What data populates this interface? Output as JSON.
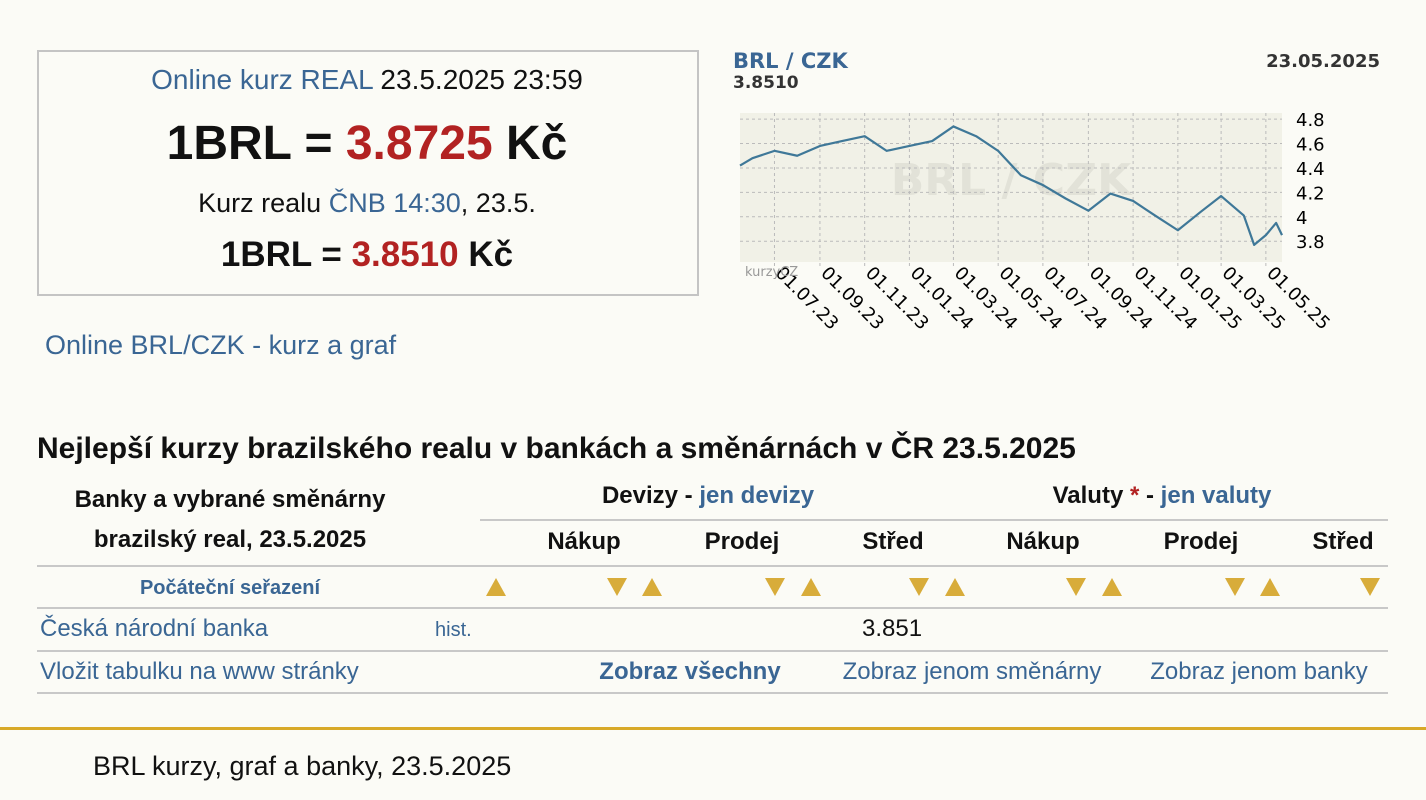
{
  "rate_box": {
    "title": "Online kurz REAL",
    "timestamp": "23.5.2025 23:59",
    "lhs": "1BRL =",
    "online_rate": "3.8725",
    "unit": "Kč",
    "cnb_prefix": "Kurz realu",
    "cnb_link": "ČNB 14:30",
    "cnb_date": ", 23.5.",
    "cnb_rate": "3.8510"
  },
  "graph_link": "Online BRL/CZK - kurz a graf",
  "chart_data": {
    "type": "line",
    "pair": "BRL / CZK",
    "last_value": "3.8510",
    "date": "23.05.2025",
    "watermark": "BRL / CZK",
    "logo": "kurzyCZ",
    "color": "#3f7898",
    "grid": true,
    "x": [
      "15.05.23",
      "01.06.23",
      "01.07.23",
      "01.08.23",
      "01.09.23",
      "01.10.23",
      "01.11.23",
      "01.12.23",
      "01.01.24",
      "01.02.24",
      "01.03.24",
      "01.04.24",
      "01.05.24",
      "01.06.24",
      "01.07.24",
      "01.08.24",
      "01.09.24",
      "01.10.24",
      "01.11.24",
      "01.12.24",
      "01.01.25",
      "01.02.25",
      "01.03.25",
      "01.04.25",
      "15.04.25",
      "01.05.25",
      "15.05.25",
      "23.05.25"
    ],
    "values": [
      4.42,
      4.48,
      4.54,
      4.5,
      4.58,
      4.62,
      4.66,
      4.54,
      4.58,
      4.62,
      4.74,
      4.66,
      4.54,
      4.34,
      4.26,
      4.15,
      4.05,
      4.19,
      4.13,
      4.01,
      3.89,
      4.04,
      4.17,
      4.01,
      3.77,
      3.85,
      3.95,
      3.85
    ],
    "xlim": [
      "15.05.23",
      "23.05.25"
    ],
    "xticks": [
      "01.07.23",
      "01.09.23",
      "01.11.23",
      "01.01.24",
      "01.03.24",
      "01.05.24",
      "01.07.24",
      "01.09.24",
      "01.11.24",
      "01.01.25",
      "01.03.25",
      "01.05.25"
    ],
    "ylim": [
      3.63,
      4.85
    ],
    "yticks": [
      3.8,
      4,
      4.2,
      4.4,
      4.6,
      4.8
    ]
  },
  "table": {
    "heading": "Nejlepší kurzy brazilského realu v bankách a směnárnách v ČR 23.5.2025",
    "caption": [
      "Banky a vybrané směnárny",
      "brazilský real, 23.5.2025"
    ],
    "groups": [
      {
        "label": "Devizy",
        "separator": "-",
        "link": "jen devizy"
      },
      {
        "label": "Valuty",
        "mark": "*",
        "separator": "-",
        "link": "jen valuty"
      }
    ],
    "columns": [
      "Nákup",
      "Prodej",
      "Střed",
      "Nákup",
      "Prodej",
      "Střed"
    ],
    "sort_label": "Počáteční seřazení",
    "rows": [
      {
        "name": "Česká národní banka",
        "hist": "hist.",
        "devizy_stred": 3.851
      }
    ],
    "links": [
      "Vložit tabulku na www stránky",
      "Zobraz všechny",
      "Zobraz jenom směnárny",
      "Zobraz jenom banky"
    ]
  },
  "footer": "BRL kurzy, graf a banky, 23.5.2025"
}
